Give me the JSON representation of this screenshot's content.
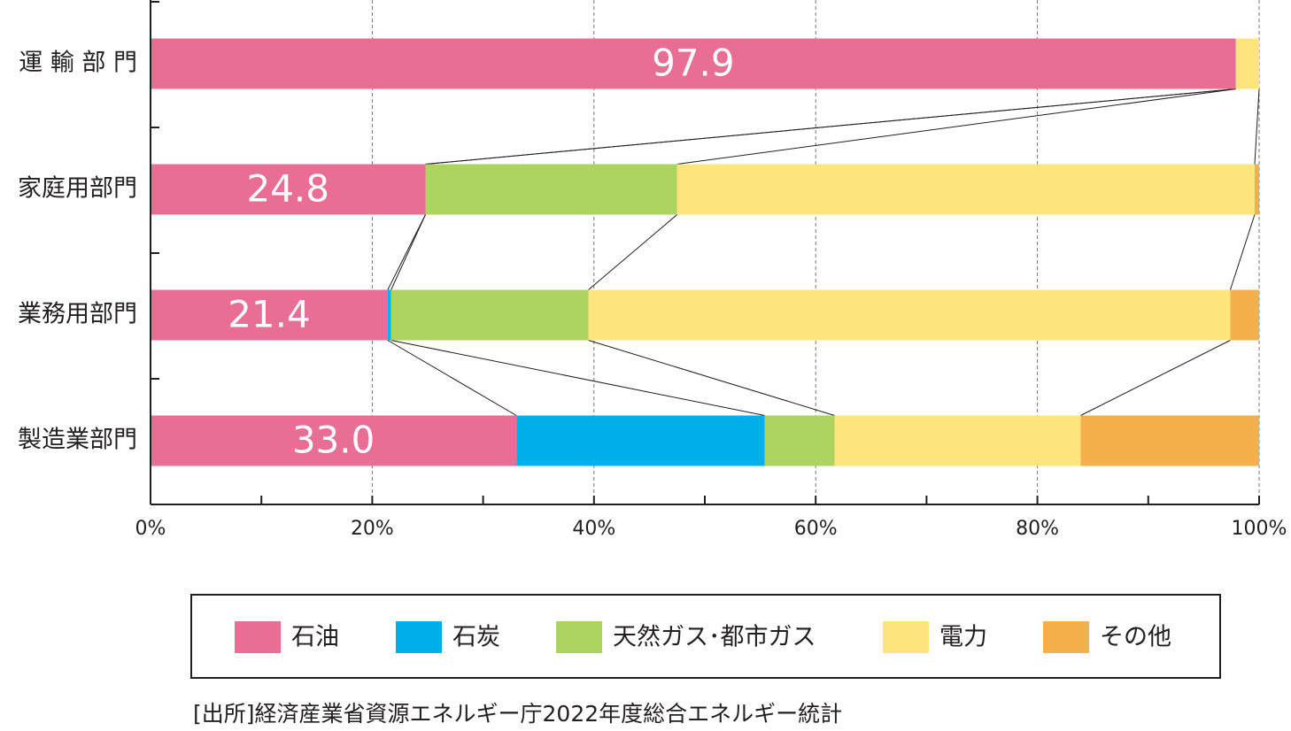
{
  "chart_data": {
    "type": "stacked-bar-horizontal",
    "categories": [
      "運 輸 部 門",
      "家庭用部門",
      "業務用部門",
      "製造業部門"
    ],
    "series": [
      {
        "name": "石油",
        "color": "#e96e93",
        "values": [
          97.9,
          24.8,
          21.4,
          33.0
        ],
        "value_labels": [
          "97.9",
          "24.8",
          "21.4",
          "33.0"
        ]
      },
      {
        "name": "石炭",
        "color": "#00b0ea",
        "values": [
          0,
          0,
          0.3,
          22.4
        ]
      },
      {
        "name": "天然ガス･都市ガス",
        "color": "#add361",
        "values": [
          0,
          22.7,
          17.8,
          6.3
        ]
      },
      {
        "name": "電力",
        "color": "#fee47c",
        "values": [
          2.1,
          52.1,
          57.9,
          22.2
        ]
      },
      {
        "name": "その他",
        "color": "#f5b04c",
        "values": [
          0,
          0.4,
          2.6,
          16.1
        ]
      }
    ],
    "xlim": [
      0,
      100
    ],
    "xticks": [
      {
        "value": 0,
        "label": "0%"
      },
      {
        "value": 20,
        "label": "20%"
      },
      {
        "value": 40,
        "label": "40%"
      },
      {
        "value": 60,
        "label": "60%"
      },
      {
        "value": 80,
        "label": "80%"
      },
      {
        "value": 100,
        "label": "100%"
      }
    ],
    "xminorticks": [
      10,
      30,
      50,
      70,
      90
    ],
    "grid": true,
    "legend": "bottom",
    "source": "[出所]経済産業省資源エネルギー庁2022年度総合エネルギー統計"
  }
}
